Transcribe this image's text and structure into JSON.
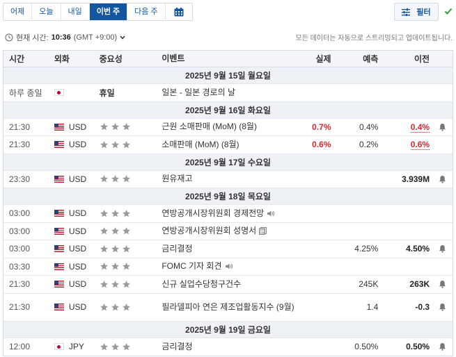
{
  "tabs": [
    "어제",
    "오늘",
    "내일",
    "이번 주",
    "다음 주"
  ],
  "active_tab": "이번 주",
  "calendar_icon": "calendar-icon",
  "filter_label": "필터",
  "time_row": {
    "label": "현재 시간:",
    "time": "10:36",
    "tz": "(GMT +9:00)",
    "notice": "모든 데이터는 자동으로 스트리밍되고 업데이트됩니다."
  },
  "columns": {
    "time": "시간",
    "currency": "외화",
    "importance": "중요성",
    "event": "이벤트",
    "actual": "실제",
    "forecast": "예측",
    "previous": "이전"
  },
  "days": [
    {
      "label": "2025년 9월 15일 월요일",
      "events": [
        {
          "time": "하루 종일",
          "flag": "jp",
          "currency": "",
          "importance_text": "휴일",
          "event": "일본 - 일본 경로의 날",
          "actual": "",
          "forecast": "",
          "previous": "",
          "bell": false
        }
      ]
    },
    {
      "label": "2025년 9월 16일 화요일",
      "events": [
        {
          "time": "21:30",
          "flag": "us",
          "currency": "USD",
          "stars": 3,
          "event": "근원 소매판매 (MoM) (8월)",
          "actual": "0.7%",
          "actual_red": true,
          "forecast": "0.4%",
          "previous": "0.4%",
          "previous_red": true,
          "bell": true
        },
        {
          "time": "21:30",
          "flag": "us",
          "currency": "USD",
          "stars": 3,
          "event": "소매판매 (MoM) (8월)",
          "actual": "0.6%",
          "actual_red": true,
          "forecast": "0.2%",
          "previous": "0.6%",
          "previous_red": true,
          "bell": false
        }
      ]
    },
    {
      "label": "2025년 9월 17일 수요일",
      "events": [
        {
          "time": "23:30",
          "flag": "us",
          "currency": "USD",
          "stars": 3,
          "event": "원유재고",
          "actual": "",
          "forecast": "",
          "previous": "3.939M",
          "previous_bold": true,
          "bell": true
        }
      ]
    },
    {
      "label": "2025년 9월 18일 목요일",
      "events": [
        {
          "time": "03:00",
          "flag": "us",
          "currency": "USD",
          "stars": 3,
          "event": "연방공개시장위원회 경제전망",
          "event_icon": "speaker-icon",
          "actual": "",
          "forecast": "",
          "previous": "",
          "bell": false
        },
        {
          "time": "03:00",
          "flag": "us",
          "currency": "USD",
          "stars": 3,
          "event": "연방공개시장위원회 성명서",
          "event_icon": "document-icon",
          "actual": "",
          "forecast": "",
          "previous": "",
          "bell": false
        },
        {
          "time": "03:00",
          "flag": "us",
          "currency": "USD",
          "stars": 3,
          "event": "금리결정",
          "actual": "",
          "forecast": "4.25%",
          "previous": "4.50%",
          "previous_bold": true,
          "bell": true
        },
        {
          "time": "03:30",
          "flag": "us",
          "currency": "USD",
          "stars": 3,
          "event": "FOMC 기자 회견",
          "event_icon": "speaker-icon",
          "actual": "",
          "forecast": "",
          "previous": "",
          "bell": false
        },
        {
          "time": "21:30",
          "flag": "us",
          "currency": "USD",
          "stars": 3,
          "event": "신규 실업수당청구건수",
          "actual": "",
          "forecast": "245K",
          "previous": "263K",
          "previous_bold": true,
          "bell": true
        },
        {
          "time": "21:30",
          "flag": "us",
          "currency": "USD",
          "stars": 3,
          "event": "필라델피아 연은 제조업활동지수 (9월)",
          "tall": true,
          "actual": "",
          "forecast": "1.4",
          "previous": "-0.3",
          "previous_bold": true,
          "bell": true
        }
      ]
    },
    {
      "label": "2025년 9월 19일 금요일",
      "events": [
        {
          "time": "12:00",
          "flag": "jp",
          "currency": "JPY",
          "stars": 3,
          "event": "금리결정",
          "actual": "",
          "forecast": "0.50%",
          "previous": "0.50%",
          "previous_bold": true,
          "bell": true
        }
      ]
    }
  ],
  "colors": {
    "accent": "#1256a0",
    "red": "#d9262e",
    "star_gray": "#9a9a9a",
    "check_green": "#2e9e3e"
  }
}
